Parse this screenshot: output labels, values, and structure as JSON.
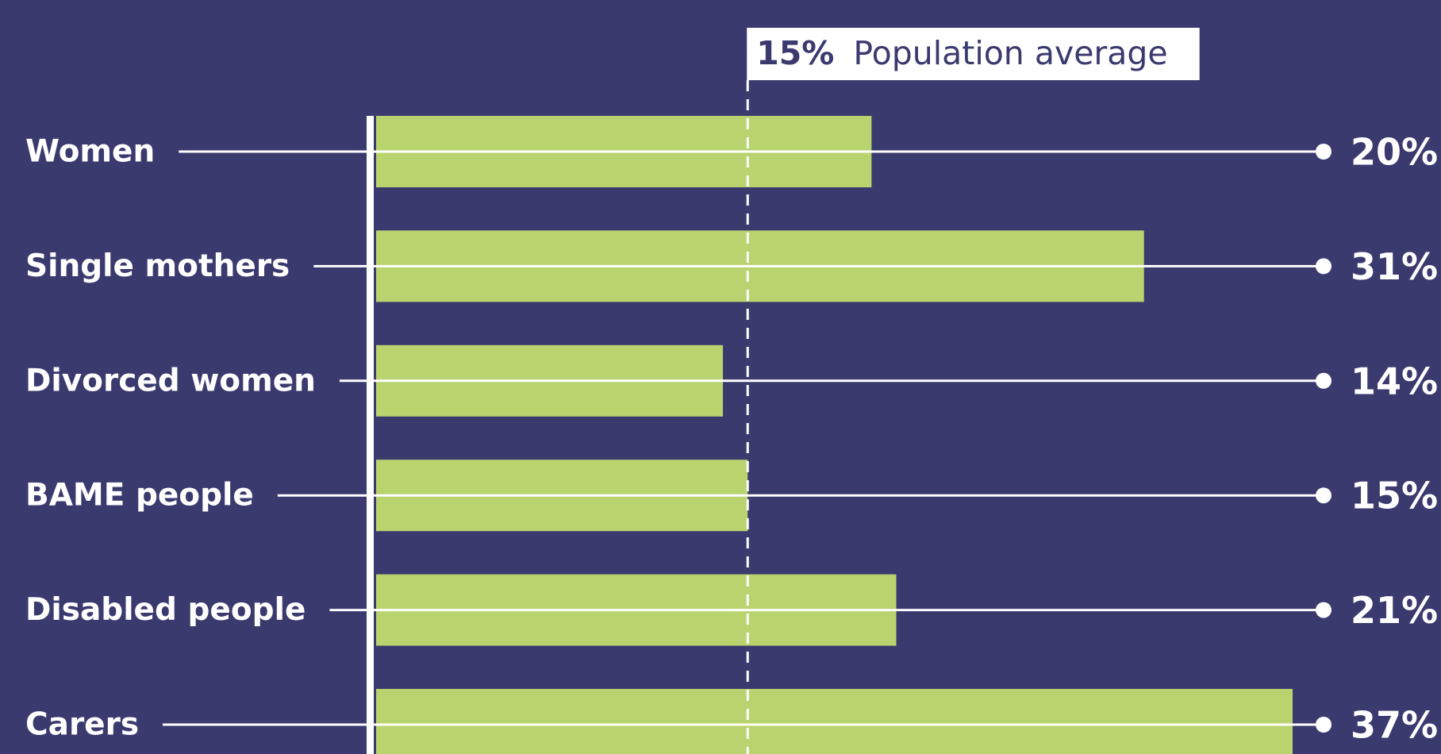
{
  "chart_data": {
    "type": "bar",
    "orientation": "horizontal",
    "categories": [
      "Women",
      "Single mothers",
      "Divorced women",
      "BAME people",
      "Disabled people",
      "Carers"
    ],
    "values": [
      20,
      31,
      14,
      15,
      21,
      37
    ],
    "value_labels": [
      "20%",
      "31%",
      "14%",
      "15%",
      "21%",
      "37%"
    ],
    "color": "#b9d36f",
    "reference": {
      "value": 15,
      "value_label": "15%",
      "label": "Population average"
    }
  }
}
